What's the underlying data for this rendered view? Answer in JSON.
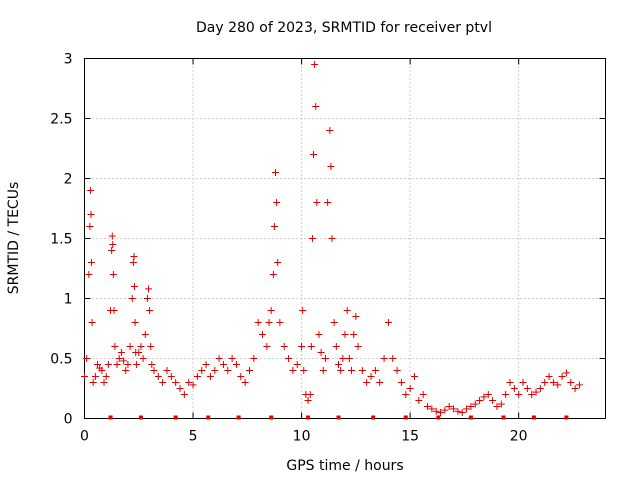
{
  "chart_data": {
    "type": "scatter",
    "title": "Day 280 of 2023, SRMTID for receiver ptvl",
    "xlabel": "GPS time / hours",
    "ylabel": "SRMTID / TECUs",
    "xlim": [
      0,
      24
    ],
    "ylim": [
      0,
      3
    ],
    "xticks": [
      0,
      5,
      10,
      15,
      20
    ],
    "xtick_labels": [
      "0",
      "5",
      "10",
      "15",
      "20"
    ],
    "yticks": [
      0,
      0.5,
      1,
      1.5,
      2,
      2.5,
      3
    ],
    "ytick_labels": [
      "0",
      "0.5",
      "1",
      "1.5",
      "2",
      "2.5",
      "3"
    ],
    "grid": true,
    "marker": "plus",
    "color": "#e00000",
    "series": [
      {
        "name": "SRMTID",
        "x": [
          0.0,
          0.1,
          0.2,
          0.25,
          0.28,
          0.3,
          0.32,
          0.35,
          0.4,
          0.5,
          0.6,
          0.7,
          0.8,
          0.9,
          1.0,
          1.1,
          1.2,
          1.25,
          1.28,
          1.3,
          1.33,
          1.36,
          1.4,
          1.5,
          1.6,
          1.7,
          1.8,
          1.9,
          2.0,
          2.1,
          2.2,
          2.25,
          2.28,
          2.3,
          2.33,
          2.36,
          2.4,
          2.5,
          2.6,
          2.7,
          2.8,
          2.9,
          2.95,
          3.0,
          3.05,
          3.1,
          3.2,
          3.4,
          3.6,
          3.8,
          4.0,
          4.2,
          4.4,
          4.6,
          4.8,
          5.0,
          5.2,
          5.4,
          5.6,
          5.8,
          6.0,
          6.2,
          6.4,
          6.6,
          6.8,
          7.0,
          7.2,
          7.4,
          7.6,
          7.8,
          8.0,
          8.2,
          8.4,
          8.5,
          8.6,
          8.7,
          8.75,
          8.8,
          8.85,
          8.9,
          9.0,
          9.2,
          9.4,
          9.6,
          9.8,
          10.0,
          10.05,
          10.1,
          10.2,
          10.3,
          10.4,
          10.45,
          10.5,
          10.55,
          10.6,
          10.65,
          10.7,
          10.8,
          10.9,
          11.0,
          11.1,
          11.2,
          11.3,
          11.35,
          11.4,
          11.5,
          11.6,
          11.7,
          11.8,
          11.9,
          12.0,
          12.1,
          12.2,
          12.3,
          12.4,
          12.5,
          12.6,
          12.8,
          13.0,
          13.2,
          13.4,
          13.6,
          13.8,
          14.0,
          14.2,
          14.4,
          14.6,
          14.8,
          15.0,
          15.2,
          15.4,
          15.6,
          15.8,
          16.0,
          16.2,
          16.4,
          16.6,
          16.8,
          17.0,
          17.2,
          17.4,
          17.6,
          17.8,
          18.0,
          18.2,
          18.4,
          18.6,
          18.8,
          19.0,
          19.2,
          19.4,
          19.6,
          19.8,
          20.0,
          20.2,
          20.4,
          20.6,
          20.8,
          21.0,
          21.2,
          21.4,
          21.6,
          21.8,
          22.0,
          22.2,
          22.4,
          22.6,
          22.8
        ],
        "values": [
          0.35,
          0.5,
          1.2,
          1.6,
          1.9,
          1.7,
          1.3,
          0.8,
          0.3,
          0.35,
          0.45,
          0.42,
          0.4,
          0.3,
          0.35,
          0.45,
          0.9,
          1.4,
          1.52,
          1.45,
          1.2,
          0.9,
          0.6,
          0.45,
          0.5,
          0.55,
          0.48,
          0.4,
          0.45,
          0.6,
          1.0,
          1.3,
          1.35,
          1.1,
          0.8,
          0.55,
          0.45,
          0.55,
          0.6,
          0.5,
          0.7,
          1.0,
          1.08,
          0.9,
          0.6,
          0.45,
          0.4,
          0.35,
          0.3,
          0.4,
          0.35,
          0.3,
          0.25,
          0.2,
          0.3,
          0.28,
          0.35,
          0.4,
          0.45,
          0.35,
          0.4,
          0.5,
          0.45,
          0.4,
          0.5,
          0.45,
          0.35,
          0.3,
          0.4,
          0.5,
          0.8,
          0.7,
          0.6,
          0.8,
          0.9,
          1.2,
          1.6,
          2.05,
          1.8,
          1.3,
          0.8,
          0.6,
          0.5,
          0.4,
          0.45,
          0.6,
          0.9,
          0.4,
          0.2,
          0.15,
          0.2,
          0.6,
          1.5,
          2.2,
          2.95,
          2.6,
          1.8,
          0.7,
          0.55,
          0.4,
          0.5,
          1.8,
          2.4,
          2.1,
          1.5,
          0.8,
          0.6,
          0.45,
          0.4,
          0.5,
          0.7,
          0.9,
          0.5,
          0.4,
          0.7,
          0.85,
          0.6,
          0.4,
          0.3,
          0.35,
          0.4,
          0.3,
          0.5,
          0.8,
          0.5,
          0.4,
          0.3,
          0.2,
          0.25,
          0.35,
          0.15,
          0.2,
          0.1,
          0.08,
          0.06,
          0.05,
          0.07,
          0.1,
          0.08,
          0.06,
          0.05,
          0.08,
          0.1,
          0.12,
          0.15,
          0.18,
          0.2,
          0.15,
          0.1,
          0.12,
          0.2,
          0.3,
          0.25,
          0.2,
          0.3,
          0.25,
          0.2,
          0.22,
          0.25,
          0.3,
          0.35,
          0.3,
          0.28,
          0.35,
          0.38,
          0.3,
          0.25,
          0.28
        ]
      }
    ],
    "baseline_markers_x": [
      1.2,
      2.6,
      4.2,
      5.7,
      7.1,
      8.6,
      10.3,
      11.7,
      13.3,
      14.8,
      16.3,
      17.8,
      19.3,
      20.7,
      22.2
    ]
  }
}
